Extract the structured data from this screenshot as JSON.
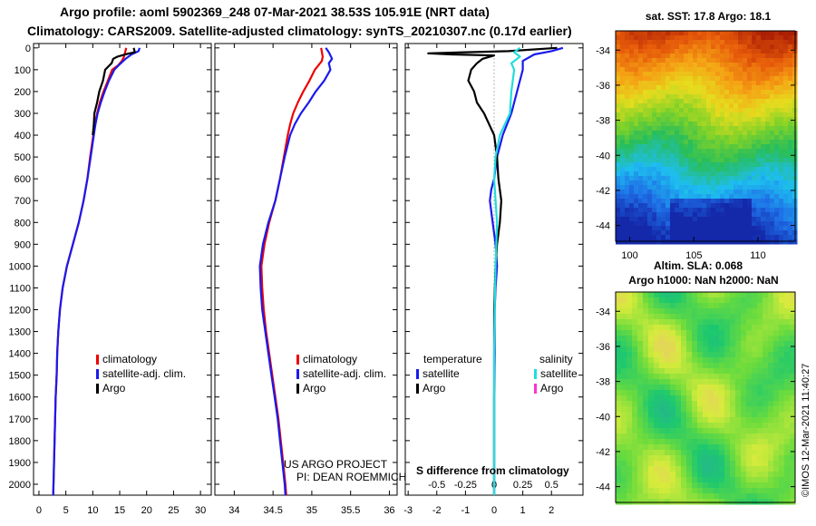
{
  "header": {
    "title_line1": "Argo profile: aoml 5902369_248 07-Mar-2021 38.53S 105.91E (NRT data)",
    "title_line2": "Climatology: CARS2009. Satellite-adjusted climatology: synTS_20210307.nc (0.17d earlier)"
  },
  "colors": {
    "climatology": "#ee0000",
    "satellite": "#1a1aee",
    "argo": "#000000",
    "sat_salinity": "#22dddd",
    "argo_salinity": "#ff33cc"
  },
  "chart_data": [
    {
      "type": "line",
      "name": "temperature-profile",
      "xlabel": "",
      "ylabel": "",
      "xlim": [
        -1,
        32
      ],
      "ylim": [
        2050,
        -20
      ],
      "xticks": [
        0,
        5,
        10,
        15,
        20,
        25,
        30
      ],
      "yticks": [
        0,
        100,
        200,
        300,
        400,
        500,
        600,
        700,
        800,
        900,
        1000,
        1100,
        1200,
        1300,
        1400,
        1500,
        1600,
        1700,
        1800,
        1900,
        2000
      ],
      "legend": [
        "climatology",
        "satellite-adj. clim.",
        "Argo"
      ],
      "series": [
        {
          "name": "climatology",
          "color": "#ee0000",
          "points": [
            [
              16.2,
              0
            ],
            [
              16.0,
              20
            ],
            [
              15.8,
              40
            ],
            [
              15.4,
              60
            ],
            [
              14.7,
              80
            ],
            [
              13.6,
              100
            ],
            [
              12.8,
              150
            ],
            [
              12.0,
              200
            ],
            [
              11.3,
              250
            ],
            [
              10.8,
              300
            ],
            [
              10.4,
              350
            ],
            [
              10.1,
              400
            ],
            [
              9.5,
              500
            ],
            [
              9.0,
              600
            ],
            [
              8.3,
              700
            ],
            [
              7.4,
              800
            ],
            [
              6.3,
              900
            ],
            [
              5.2,
              1000
            ],
            [
              4.4,
              1100
            ],
            [
              3.9,
              1200
            ],
            [
              3.6,
              1300
            ],
            [
              3.4,
              1400
            ],
            [
              3.3,
              1500
            ],
            [
              3.1,
              1600
            ],
            [
              3.0,
              1700
            ],
            [
              2.9,
              1800
            ],
            [
              2.8,
              1900
            ],
            [
              2.7,
              2000
            ],
            [
              2.65,
              2050
            ]
          ]
        },
        {
          "name": "satellite-adj. clim.",
          "color": "#1a1aee",
          "points": [
            [
              18.7,
              0
            ],
            [
              18.5,
              15
            ],
            [
              17.2,
              30
            ],
            [
              16.1,
              50
            ],
            [
              15.0,
              75
            ],
            [
              14.0,
              100
            ],
            [
              13.0,
              150
            ],
            [
              12.2,
              200
            ],
            [
              11.5,
              250
            ],
            [
              10.9,
              300
            ],
            [
              10.5,
              350
            ],
            [
              10.2,
              400
            ],
            [
              9.6,
              500
            ],
            [
              9.0,
              600
            ],
            [
              8.3,
              700
            ],
            [
              7.4,
              800
            ],
            [
              6.3,
              900
            ],
            [
              5.2,
              1000
            ],
            [
              4.4,
              1100
            ],
            [
              3.9,
              1200
            ],
            [
              3.6,
              1300
            ],
            [
              3.4,
              1400
            ],
            [
              3.3,
              1500
            ],
            [
              3.1,
              1600
            ],
            [
              3.0,
              1700
            ],
            [
              2.9,
              1800
            ],
            [
              2.8,
              1900
            ],
            [
              2.7,
              2000
            ],
            [
              2.65,
              2050
            ]
          ]
        },
        {
          "name": "Argo",
          "color": "#000000",
          "points": [
            [
              17.6,
              0
            ],
            [
              17.8,
              20
            ],
            [
              16.0,
              30
            ],
            [
              14.6,
              40
            ],
            [
              13.8,
              50
            ],
            [
              13.5,
              70
            ],
            [
              12.3,
              100
            ],
            [
              11.9,
              150
            ],
            [
              11.2,
              200
            ],
            [
              10.8,
              250
            ],
            [
              10.3,
              300
            ],
            [
              10.2,
              350
            ],
            [
              10.0,
              400
            ]
          ]
        }
      ]
    },
    {
      "type": "line",
      "name": "salinity-profile",
      "xlabel": "",
      "ylabel": "",
      "xlim": [
        33.75,
        36.1
      ],
      "ylim": [
        2050,
        -20
      ],
      "xticks": [
        34,
        34.5,
        35,
        35.5,
        36
      ],
      "legend": [
        "climatology",
        "satellite-adj. clim.",
        "Argo"
      ],
      "series": [
        {
          "name": "climatology",
          "color": "#ee0000",
          "points": [
            [
              35.12,
              0
            ],
            [
              35.14,
              40
            ],
            [
              35.13,
              60
            ],
            [
              35.04,
              100
            ],
            [
              34.97,
              150
            ],
            [
              34.89,
              200
            ],
            [
              34.82,
              250
            ],
            [
              34.76,
              300
            ],
            [
              34.72,
              350
            ],
            [
              34.69,
              400
            ],
            [
              34.64,
              500
            ],
            [
              34.59,
              600
            ],
            [
              34.53,
              700
            ],
            [
              34.45,
              800
            ],
            [
              34.39,
              900
            ],
            [
              34.35,
              1000
            ],
            [
              34.36,
              1100
            ],
            [
              34.38,
              1200
            ],
            [
              34.41,
              1300
            ],
            [
              34.45,
              1400
            ],
            [
              34.49,
              1500
            ],
            [
              34.53,
              1600
            ],
            [
              34.57,
              1700
            ],
            [
              34.6,
              1800
            ],
            [
              34.63,
              1900
            ],
            [
              34.66,
              2000
            ],
            [
              34.67,
              2050
            ]
          ]
        },
        {
          "name": "satellite-adj. clim.",
          "color": "#1a1aee",
          "points": [
            [
              35.18,
              0
            ],
            [
              35.22,
              20
            ],
            [
              35.26,
              50
            ],
            [
              35.22,
              70
            ],
            [
              35.24,
              100
            ],
            [
              35.16,
              150
            ],
            [
              35.05,
              200
            ],
            [
              34.96,
              250
            ],
            [
              34.86,
              300
            ],
            [
              34.78,
              350
            ],
            [
              34.72,
              400
            ],
            [
              34.65,
              500
            ],
            [
              34.59,
              600
            ],
            [
              34.53,
              700
            ],
            [
              34.44,
              800
            ],
            [
              34.37,
              900
            ],
            [
              34.33,
              1000
            ],
            [
              34.34,
              1100
            ],
            [
              34.36,
              1200
            ],
            [
              34.4,
              1300
            ],
            [
              34.44,
              1400
            ],
            [
              34.48,
              1500
            ],
            [
              34.52,
              1600
            ],
            [
              34.56,
              1700
            ],
            [
              34.59,
              1800
            ],
            [
              34.62,
              1900
            ],
            [
              34.65,
              2000
            ],
            [
              34.66,
              2050
            ]
          ]
        }
      ]
    },
    {
      "type": "line",
      "name": "difference-profile",
      "title": "S difference from climatology",
      "xlabel": "",
      "ylabel": "",
      "xlim": [
        -3.1,
        3.1
      ],
      "ylim": [
        2050,
        -20
      ],
      "xticks": [
        -3,
        -2,
        -1,
        0,
        1,
        2
      ],
      "salinity_tick_labels": [
        "-0.5",
        "-0.25",
        "0",
        "0.25",
        "0.5"
      ],
      "salinity_tick_positions_temp_units": [
        -2,
        -1,
        0,
        1,
        2
      ],
      "legend": {
        "temperature_heading": "temperature",
        "salinity_heading": "salinity",
        "temperature_entries": [
          "satellite",
          "Argo"
        ],
        "salinity_entries": [
          "satellite",
          "Argo"
        ]
      },
      "series": [
        {
          "name": "temperature satellite",
          "color": "#1a1aee",
          "points": [
            [
              2.4,
              0
            ],
            [
              2.0,
              15
            ],
            [
              1.4,
              30
            ],
            [
              1.0,
              60
            ],
            [
              1.0,
              100
            ],
            [
              0.8,
              200
            ],
            [
              0.6,
              300
            ],
            [
              0.3,
              400
            ],
            [
              0.1,
              500
            ],
            [
              0.0,
              600
            ],
            [
              -0.1,
              650
            ],
            [
              -0.15,
              700
            ],
            [
              -0.05,
              800
            ],
            [
              0.05,
              900
            ],
            [
              0.1,
              1000
            ],
            [
              0.05,
              1100
            ],
            [
              0.02,
              1200
            ],
            [
              0.02,
              1400
            ],
            [
              0.0,
              1600
            ],
            [
              0.0,
              1800
            ],
            [
              0.0,
              2000
            ],
            [
              0.0,
              2050
            ]
          ]
        },
        {
          "name": "temperature Argo",
          "color": "#000000",
          "points": [
            [
              2.2,
              0
            ],
            [
              0.5,
              15
            ],
            [
              -1.0,
              20
            ],
            [
              -2.3,
              25
            ],
            [
              -1.5,
              30
            ],
            [
              0.0,
              35
            ],
            [
              -0.4,
              50
            ],
            [
              -0.6,
              70
            ],
            [
              -0.8,
              100
            ],
            [
              -0.9,
              150
            ],
            [
              -0.7,
              200
            ],
            [
              -0.6,
              250
            ],
            [
              -0.35,
              300
            ],
            [
              0.0,
              400
            ],
            [
              0.1,
              500
            ],
            [
              0.15,
              600
            ],
            [
              0.25,
              700
            ],
            [
              0.2,
              800
            ],
            [
              0.1,
              900
            ],
            [
              0.05,
              1000
            ],
            [
              0.0,
              1200
            ],
            [
              0.0,
              1400
            ],
            [
              0.0,
              1600
            ],
            [
              0.0,
              1800
            ],
            [
              0.0,
              2000
            ],
            [
              0.0,
              2050
            ]
          ]
        },
        {
          "name": "salinity satellite",
          "color": "#22dddd",
          "points": [
            [
              0.9,
              0
            ],
            [
              0.7,
              20
            ],
            [
              0.9,
              40
            ],
            [
              0.6,
              70
            ],
            [
              0.7,
              100
            ],
            [
              0.6,
              200
            ],
            [
              0.55,
              300
            ],
            [
              0.2,
              400
            ],
            [
              0.05,
              500
            ],
            [
              0.0,
              600
            ],
            [
              0.05,
              700
            ],
            [
              0.1,
              800
            ],
            [
              0.05,
              1000
            ],
            [
              0.02,
              1200
            ],
            [
              0.0,
              1400
            ],
            [
              0.0,
              1600
            ],
            [
              0.0,
              1800
            ],
            [
              0.0,
              2000
            ],
            [
              0.0,
              2050
            ]
          ]
        }
      ]
    },
    {
      "type": "heatmap",
      "name": "sst-map",
      "title": "sat. SST: 17.8 Argo: 18.1",
      "xlim": [
        98.9,
        112.9
      ],
      "ylim": [
        -44.9,
        -32.9
      ],
      "xticks": [
        100,
        105,
        110
      ],
      "yticks": [
        -34,
        -36,
        -38,
        -40,
        -42,
        -44
      ]
    },
    {
      "type": "heatmap",
      "name": "sla-map",
      "title_line1": "Altim. SLA: 0.068",
      "title_line2": "Argo h1000: NaN h2000: NaN",
      "xlim": [
        98.9,
        112.9
      ],
      "ylim": [
        -44.9,
        -32.9
      ],
      "yticks": [
        -34,
        -36,
        -38,
        -40,
        -42,
        -44
      ]
    }
  ],
  "annotations": {
    "program_line1": "US ARGO PROJECT",
    "program_line2": "PI: DEAN ROEMMICH",
    "stamp": "©IMOS 12-Mar-2021 11:40:27"
  }
}
